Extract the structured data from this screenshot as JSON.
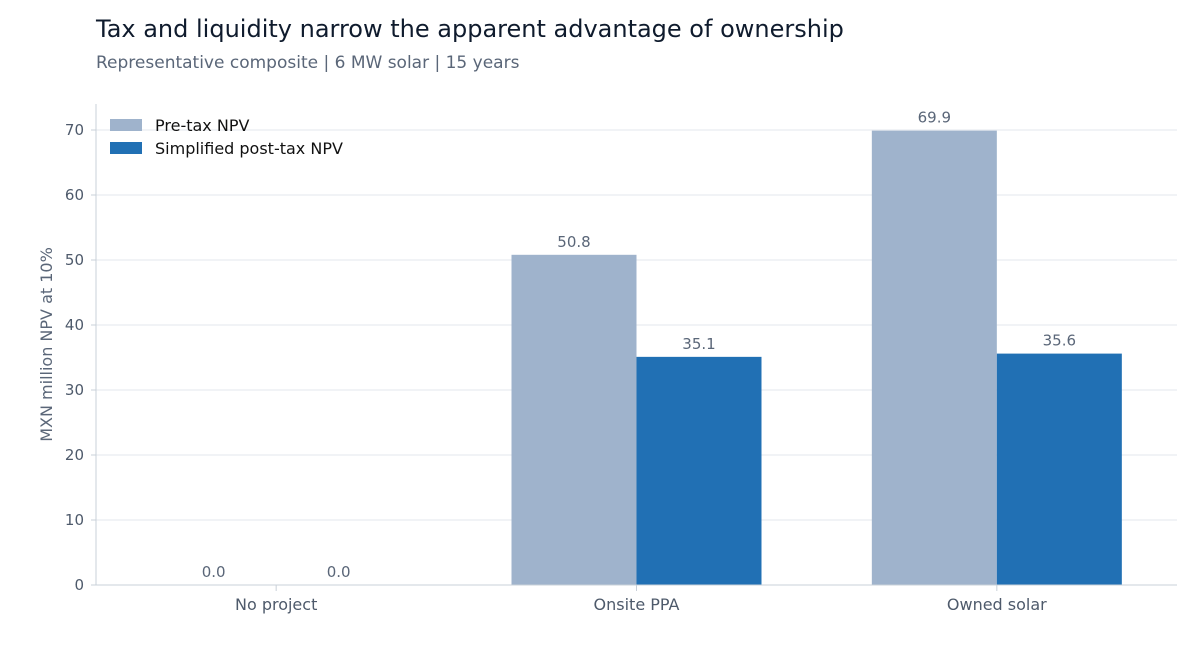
{
  "chart_data": {
    "type": "bar",
    "title": "Tax and liquidity narrow the apparent advantage of ownership",
    "subtitle": "Representative composite | 6 MW solar | 15 years",
    "ylabel": "MXN million NPV at 10%",
    "xlabel": "",
    "categories": [
      "No project",
      "Onsite PPA",
      "Owned solar"
    ],
    "series": [
      {
        "name": "Pre-tax NPV",
        "values": [
          0.0,
          50.8,
          69.9
        ],
        "labels": [
          "0.0",
          "50.8",
          "69.9"
        ],
        "color": "#9fb3cc"
      },
      {
        "name": "Simplified post-tax NPV",
        "values": [
          0.0,
          35.1,
          35.6
        ],
        "labels": [
          "0.0",
          "35.1",
          "35.6"
        ],
        "color": "#2170b4"
      }
    ],
    "ylim": [
      0,
      74
    ],
    "yticks": [
      "0",
      "10",
      "20",
      "30",
      "40",
      "50",
      "60",
      "70"
    ],
    "grid": true,
    "legend_position": "top-left"
  }
}
